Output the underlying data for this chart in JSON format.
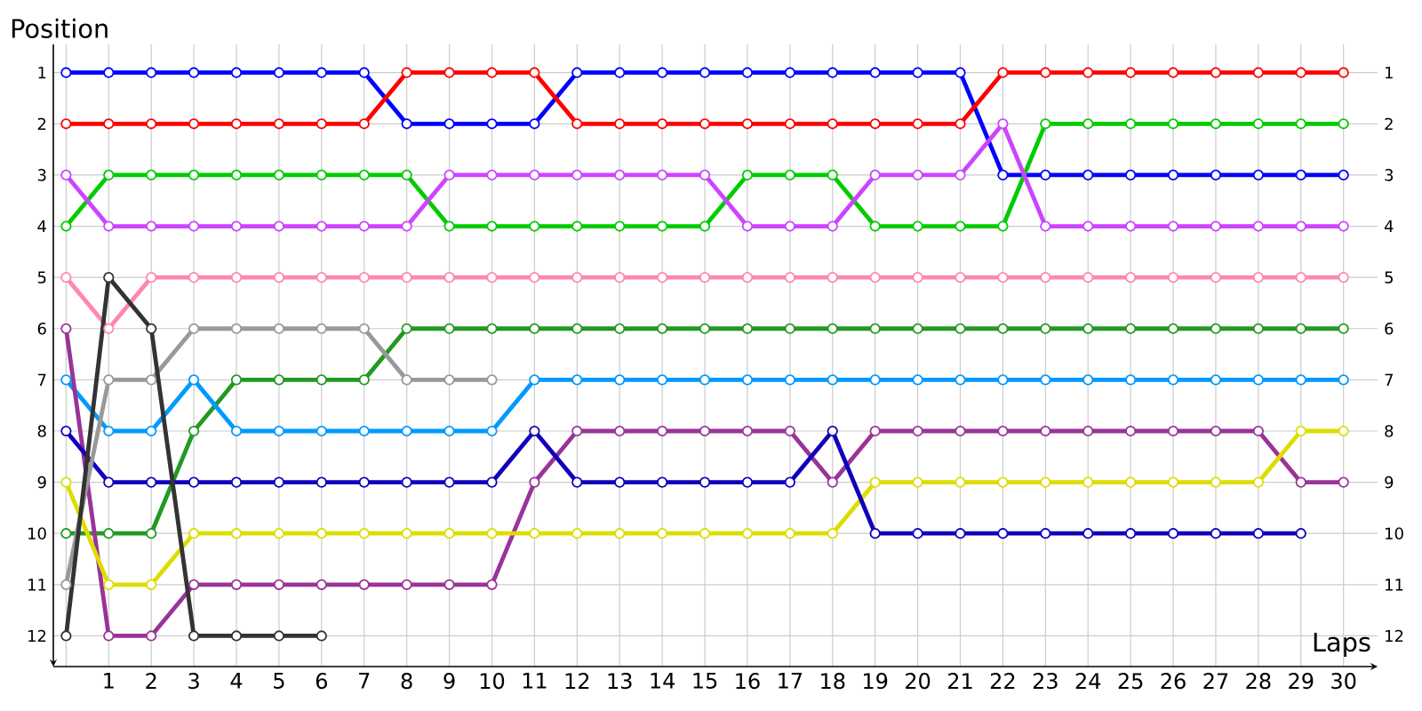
{
  "chart_data": {
    "type": "line",
    "xlabel": "Laps",
    "ylabel": "Position",
    "x": [
      0,
      1,
      2,
      3,
      4,
      5,
      6,
      7,
      8,
      9,
      10,
      11,
      12,
      13,
      14,
      15,
      16,
      17,
      18,
      19,
      20,
      21,
      22,
      23,
      24,
      25,
      26,
      27,
      28,
      29,
      30
    ],
    "series": [
      {
        "color": "#0000ff",
        "values": [
          1,
          1,
          1,
          1,
          1,
          1,
          1,
          1,
          2,
          2,
          2,
          2,
          1,
          1,
          1,
          1,
          1,
          1,
          1,
          1,
          1,
          1,
          3,
          3,
          3,
          3,
          3,
          3,
          3,
          3,
          3
        ]
      },
      {
        "color": "#ff0000",
        "values": [
          2,
          2,
          2,
          2,
          2,
          2,
          2,
          2,
          1,
          1,
          1,
          1,
          2,
          2,
          2,
          2,
          2,
          2,
          2,
          2,
          2,
          2,
          1,
          1,
          1,
          1,
          1,
          1,
          1,
          1,
          1
        ]
      },
      {
        "color": "#00cc00",
        "values": [
          4,
          3,
          3,
          3,
          3,
          3,
          3,
          3,
          3,
          4,
          4,
          4,
          4,
          4,
          4,
          4,
          3,
          3,
          3,
          4,
          4,
          4,
          4,
          2,
          2,
          2,
          2,
          2,
          2,
          2,
          2
        ]
      },
      {
        "color": "#cc44ff",
        "values": [
          3,
          4,
          4,
          4,
          4,
          4,
          4,
          4,
          4,
          3,
          3,
          3,
          3,
          3,
          3,
          3,
          4,
          4,
          4,
          3,
          3,
          3,
          2,
          4,
          4,
          4,
          4,
          4,
          4,
          4,
          4
        ]
      },
      {
        "color": "#ff88aa",
        "values": [
          5,
          6,
          5,
          5,
          5,
          5,
          5,
          5,
          5,
          5,
          5,
          5,
          5,
          5,
          5,
          5,
          5,
          5,
          5,
          5,
          5,
          5,
          5,
          5,
          5,
          5,
          5,
          5,
          5,
          5,
          5
        ]
      },
      {
        "color": "#229922",
        "values": [
          10,
          10,
          10,
          8,
          7,
          7,
          7,
          7,
          6,
          6,
          6,
          6,
          6,
          6,
          6,
          6,
          6,
          6,
          6,
          6,
          6,
          6,
          6,
          6,
          6,
          6,
          6,
          6,
          6,
          6,
          6
        ]
      },
      {
        "color": "#0099ff",
        "values": [
          7,
          8,
          8,
          7,
          8,
          8,
          8,
          8,
          8,
          8,
          8,
          7,
          7,
          7,
          7,
          7,
          7,
          7,
          7,
          7,
          7,
          7,
          7,
          7,
          7,
          7,
          7,
          7,
          7,
          7,
          7
        ]
      },
      {
        "color": "#993399",
        "values": [
          6,
          12,
          12,
          11,
          11,
          11,
          11,
          11,
          11,
          11,
          11,
          9,
          8,
          8,
          8,
          8,
          8,
          8,
          9,
          8,
          8,
          8,
          8,
          8,
          8,
          8,
          8,
          8,
          8,
          9,
          9
        ]
      },
      {
        "color": "#dddd00",
        "values": [
          9,
          11,
          11,
          10,
          10,
          10,
          10,
          10,
          10,
          10,
          10,
          10,
          10,
          10,
          10,
          10,
          10,
          10,
          10,
          9,
          9,
          9,
          9,
          9,
          9,
          9,
          9,
          9,
          9,
          8,
          8
        ]
      },
      {
        "color": "#1100bb",
        "values": [
          8,
          9,
          9,
          9,
          9,
          9,
          9,
          9,
          9,
          9,
          9,
          8,
          9,
          9,
          9,
          9,
          9,
          9,
          8,
          10,
          10,
          10,
          10,
          10,
          10,
          10,
          10,
          10,
          10,
          10,
          null
        ]
      },
      {
        "color": "#999999",
        "values": [
          11,
          7,
          7,
          6,
          6,
          6,
          6,
          6,
          7,
          7,
          7,
          null,
          null,
          null,
          null,
          null,
          null,
          null,
          null,
          null,
          null,
          null,
          null,
          null,
          null,
          null,
          null,
          null,
          null,
          null,
          null
        ]
      },
      {
        "color": "#333333",
        "values": [
          12,
          5,
          6,
          12,
          12,
          12,
          12,
          null,
          null,
          null,
          null,
          null,
          null,
          null,
          null,
          null,
          null,
          null,
          null,
          null,
          null,
          null,
          null,
          null,
          null,
          null,
          null,
          null,
          null,
          null,
          null
        ]
      }
    ],
    "xlim": [
      -0.3,
      30.8
    ],
    "xticks": [
      {
        "value": 0,
        "label": null
      },
      1,
      2,
      3,
      4,
      5,
      6,
      7,
      8,
      9,
      10,
      11,
      12,
      13,
      14,
      15,
      16,
      17,
      18,
      19,
      20,
      21,
      22,
      23,
      24,
      25,
      26,
      27,
      28,
      29,
      30
    ],
    "ylim": [
      12.6,
      0.45
    ],
    "yticks": [
      1,
      2,
      3,
      4,
      5,
      6,
      7,
      8,
      9,
      10,
      11,
      12
    ],
    "y2lim": [
      12.6,
      0.45
    ],
    "y2ticks": [
      1,
      2,
      3,
      4,
      5,
      6,
      7,
      8,
      9,
      10,
      11,
      12
    ],
    "grid": true,
    "marker": "circle",
    "line_style": "solid"
  }
}
